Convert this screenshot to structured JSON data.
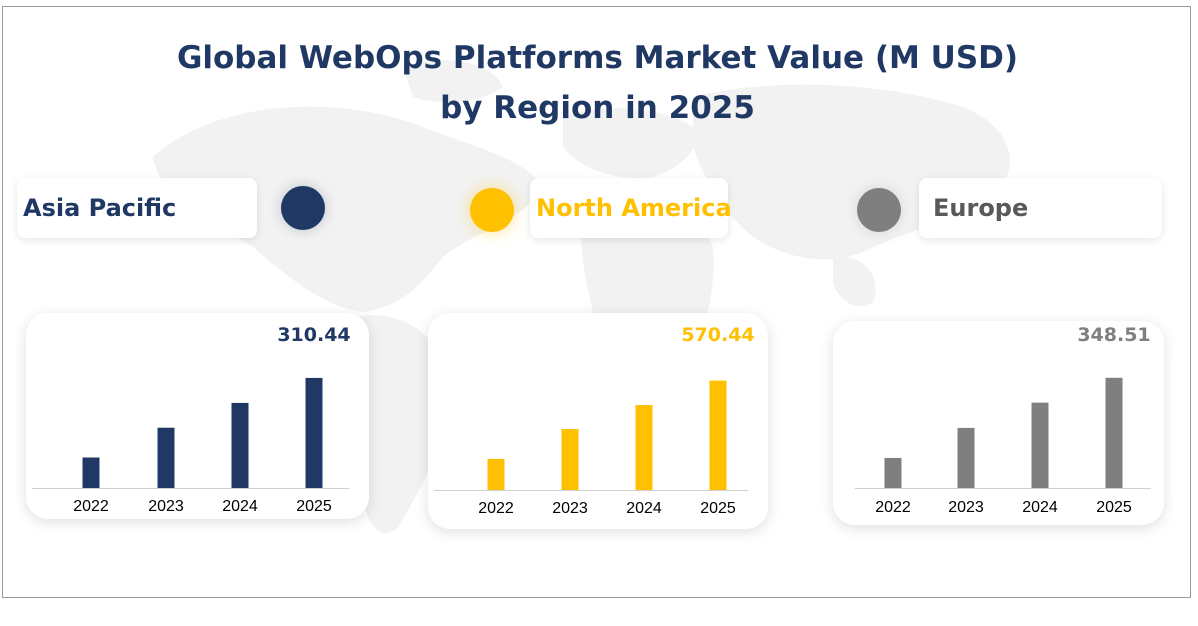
{
  "title_lines": [
    "Global WebOps Platforms Market Value (M USD)",
    "by Region in 2025"
  ],
  "colors": {
    "title": "#1f3864",
    "asia_pacific": "#1f3864",
    "north_america": "#ffc000",
    "europe": "#7f7f7f"
  },
  "regions": [
    {
      "name": "Asia Pacific",
      "color": "#1f3864"
    },
    {
      "name": "North America",
      "color": "#ffc000"
    },
    {
      "name": "Europe",
      "color": "#7f7f7f"
    }
  ],
  "chart_data": [
    {
      "type": "bar",
      "region": "Asia Pacific",
      "categories": [
        "2022",
        "2023",
        "2024",
        "2025"
      ],
      "values": [
        86,
        170,
        240,
        310.44
      ],
      "value_label": "310.44",
      "ylim": [
        0,
        330
      ],
      "grid": false,
      "color": "#1f3864"
    },
    {
      "type": "bar",
      "region": "North America",
      "categories": [
        "2022",
        "2023",
        "2024",
        "2025"
      ],
      "values": [
        162,
        318,
        443,
        570.44
      ],
      "value_label": "570.44",
      "ylim": [
        0,
        610
      ],
      "grid": false,
      "color": "#ffc000"
    },
    {
      "type": "bar",
      "region": "Europe",
      "categories": [
        "2022",
        "2023",
        "2024",
        "2025"
      ],
      "values": [
        95,
        190,
        270,
        348.51
      ],
      "value_label": "348.51",
      "ylim": [
        0,
        370
      ],
      "grid": false,
      "color": "#7f7f7f"
    }
  ]
}
